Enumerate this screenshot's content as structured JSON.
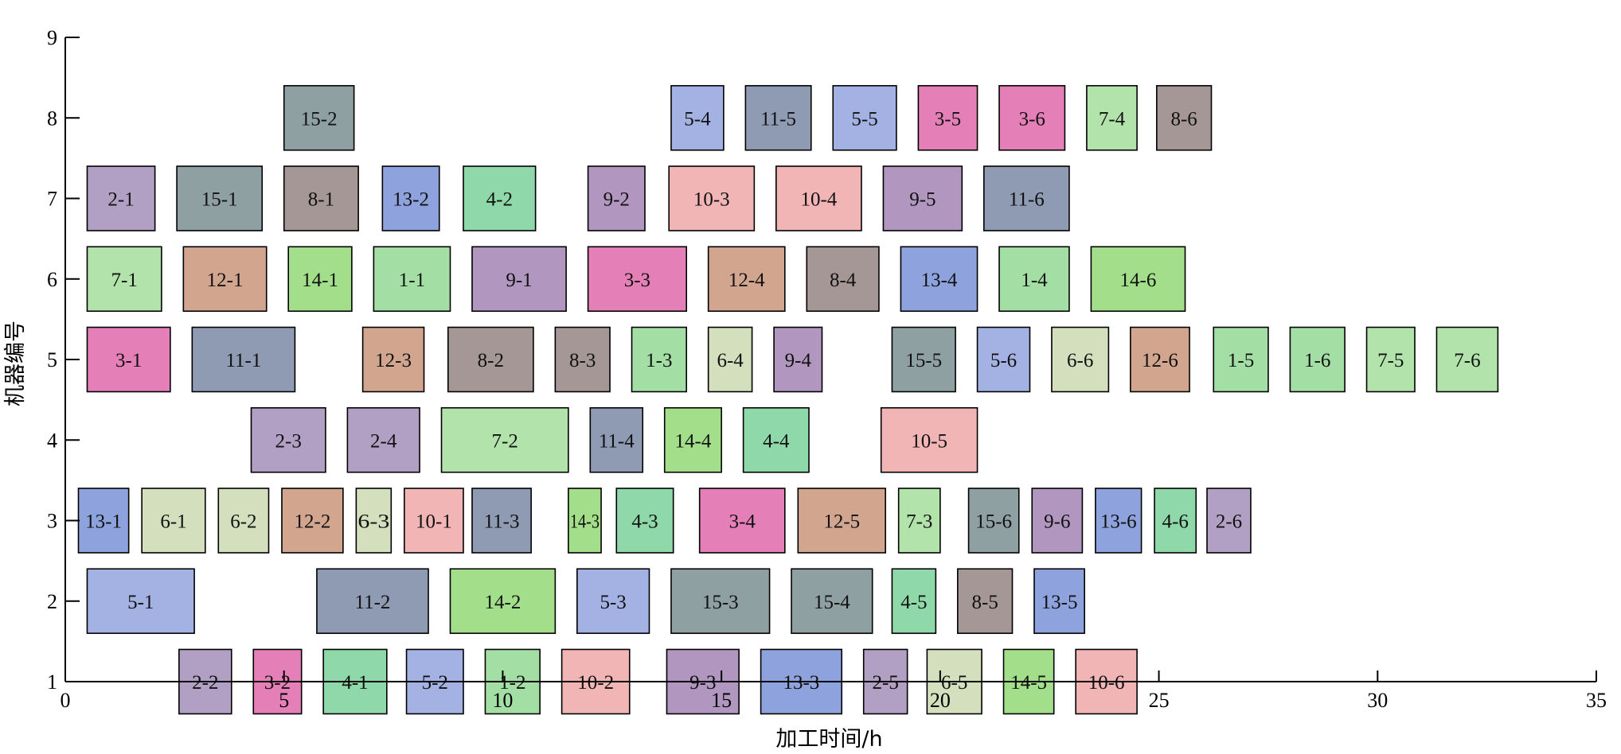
{
  "chart_data": {
    "type": "gantt",
    "xlabel": "加工时间/h",
    "ylabel": "机器编号",
    "xlim": [
      0,
      35
    ],
    "ylim": [
      1,
      9
    ],
    "xticks": [
      0,
      5,
      10,
      15,
      20,
      25,
      30,
      35
    ],
    "yticks": [
      1,
      2,
      3,
      4,
      5,
      6,
      7,
      8,
      9
    ],
    "grid": false,
    "legend": "none",
    "colors": {
      "1": "#a3dfa5",
      "2": "#b19fc4",
      "3": "#e57fb8",
      "4": "#8fd8a9",
      "5": "#a3b2e3",
      "6": "#d3dfbd",
      "7": "#b1e3ab",
      "8": "#a69797",
      "9": "#b196c0",
      "10": "#f2b5b5",
      "11": "#8e9bb3",
      "12": "#d2a58f",
      "13": "#8ea3dd",
      "14": "#a3df8a",
      "15": "#8fa0a3"
    },
    "tasks": [
      {
        "label": "2-2",
        "job": "2",
        "machine": 1,
        "start": 2.6,
        "end": 3.8
      },
      {
        "label": "3-2",
        "job": "3",
        "machine": 1,
        "start": 4.3,
        "end": 5.4
      },
      {
        "label": "4-1",
        "job": "4",
        "machine": 1,
        "start": 5.9,
        "end": 7.35
      },
      {
        "label": "5-2",
        "job": "5",
        "machine": 1,
        "start": 7.8,
        "end": 9.1
      },
      {
        "label": "1-2",
        "job": "1",
        "machine": 1,
        "start": 9.6,
        "end": 10.85
      },
      {
        "label": "10-2",
        "job": "10",
        "machine": 1,
        "start": 11.35,
        "end": 12.9
      },
      {
        "label": "9-3",
        "job": "9",
        "machine": 1,
        "start": 13.75,
        "end": 15.4
      },
      {
        "label": "13-3",
        "job": "13",
        "machine": 1,
        "start": 15.9,
        "end": 17.75
      },
      {
        "label": "2-5",
        "job": "2",
        "machine": 1,
        "start": 18.25,
        "end": 19.25
      },
      {
        "label": "6-5",
        "job": "6",
        "machine": 1,
        "start": 19.7,
        "end": 20.95
      },
      {
        "label": "14-5",
        "job": "14",
        "machine": 1,
        "start": 21.45,
        "end": 22.6
      },
      {
        "label": "10-6",
        "job": "10",
        "machine": 1,
        "start": 23.1,
        "end": 24.5
      },
      {
        "label": "5-1",
        "job": "5",
        "machine": 2,
        "start": 0.5,
        "end": 2.95
      },
      {
        "label": "11-2",
        "job": "11",
        "machine": 2,
        "start": 5.75,
        "end": 8.3
      },
      {
        "label": "14-2",
        "job": "14",
        "machine": 2,
        "start": 8.8,
        "end": 11.2
      },
      {
        "label": "5-3",
        "job": "5",
        "machine": 2,
        "start": 11.7,
        "end": 13.35
      },
      {
        "label": "15-3",
        "job": "15",
        "machine": 2,
        "start": 13.85,
        "end": 16.1
      },
      {
        "label": "15-4",
        "job": "15",
        "machine": 2,
        "start": 16.6,
        "end": 18.45
      },
      {
        "label": "4-5",
        "job": "4",
        "machine": 2,
        "start": 18.9,
        "end": 19.9
      },
      {
        "label": "8-5",
        "job": "8",
        "machine": 2,
        "start": 20.4,
        "end": 21.65
      },
      {
        "label": "13-5",
        "job": "13",
        "machine": 2,
        "start": 22.15,
        "end": 23.3
      },
      {
        "label": "13-1",
        "job": "13",
        "machine": 3,
        "start": 0.3,
        "end": 1.45
      },
      {
        "label": "6-1",
        "job": "6",
        "machine": 3,
        "start": 1.75,
        "end": 3.2
      },
      {
        "label": "6-2",
        "job": "6",
        "machine": 3,
        "start": 3.5,
        "end": 4.65
      },
      {
        "label": "12-2",
        "job": "12",
        "machine": 3,
        "start": 4.95,
        "end": 6.35
      },
      {
        "label": "6-3",
        "job": "6",
        "machine": 3,
        "start": 6.65,
        "end": 7.45
      },
      {
        "label": "10-1",
        "job": "10",
        "machine": 3,
        "start": 7.75,
        "end": 9.1
      },
      {
        "label": "11-3",
        "job": "11",
        "machine": 3,
        "start": 9.3,
        "end": 10.65
      },
      {
        "label": "14-3",
        "job": "14",
        "machine": 3,
        "start": 11.5,
        "end": 12.25
      },
      {
        "label": "4-3",
        "job": "4",
        "machine": 3,
        "start": 12.6,
        "end": 13.9
      },
      {
        "label": "3-4",
        "job": "3",
        "machine": 3,
        "start": 14.5,
        "end": 16.45
      },
      {
        "label": "12-5",
        "job": "12",
        "machine": 3,
        "start": 16.75,
        "end": 18.75
      },
      {
        "label": "7-3",
        "job": "7",
        "machine": 3,
        "start": 19.05,
        "end": 20.0
      },
      {
        "label": "15-6",
        "job": "15",
        "machine": 3,
        "start": 20.65,
        "end": 21.8
      },
      {
        "label": "9-6",
        "job": "9",
        "machine": 3,
        "start": 22.1,
        "end": 23.25
      },
      {
        "label": "13-6",
        "job": "13",
        "machine": 3,
        "start": 23.55,
        "end": 24.6
      },
      {
        "label": "4-6",
        "job": "4",
        "machine": 3,
        "start": 24.9,
        "end": 25.85
      },
      {
        "label": "2-6",
        "job": "2",
        "machine": 3,
        "start": 26.1,
        "end": 27.1
      },
      {
        "label": "2-3",
        "job": "2",
        "machine": 4,
        "start": 4.25,
        "end": 5.95
      },
      {
        "label": "2-4",
        "job": "2",
        "machine": 4,
        "start": 6.45,
        "end": 8.1
      },
      {
        "label": "7-2",
        "job": "7",
        "machine": 4,
        "start": 8.6,
        "end": 11.5
      },
      {
        "label": "11-4",
        "job": "11",
        "machine": 4,
        "start": 12.0,
        "end": 13.2
      },
      {
        "label": "14-4",
        "job": "14",
        "machine": 4,
        "start": 13.7,
        "end": 15.0
      },
      {
        "label": "4-4",
        "job": "4",
        "machine": 4,
        "start": 15.5,
        "end": 17.0
      },
      {
        "label": "10-5",
        "job": "10",
        "machine": 4,
        "start": 18.65,
        "end": 20.85
      },
      {
        "label": "3-1",
        "job": "3",
        "machine": 5,
        "start": 0.5,
        "end": 2.4
      },
      {
        "label": "11-1",
        "job": "11",
        "machine": 5,
        "start": 2.9,
        "end": 5.25
      },
      {
        "label": "12-3",
        "job": "12",
        "machine": 5,
        "start": 6.8,
        "end": 8.2
      },
      {
        "label": "8-2",
        "job": "8",
        "machine": 5,
        "start": 8.75,
        "end": 10.7
      },
      {
        "label": "8-3",
        "job": "8",
        "machine": 5,
        "start": 11.2,
        "end": 12.45
      },
      {
        "label": "1-3",
        "job": "1",
        "machine": 5,
        "start": 12.95,
        "end": 14.2
      },
      {
        "label": "6-4",
        "job": "6",
        "machine": 5,
        "start": 14.7,
        "end": 15.7
      },
      {
        "label": "9-4",
        "job": "9",
        "machine": 5,
        "start": 16.2,
        "end": 17.3
      },
      {
        "label": "15-5",
        "job": "15",
        "machine": 5,
        "start": 18.9,
        "end": 20.35
      },
      {
        "label": "5-6",
        "job": "5",
        "machine": 5,
        "start": 20.85,
        "end": 22.05
      },
      {
        "label": "6-6",
        "job": "6",
        "machine": 5,
        "start": 22.55,
        "end": 23.85
      },
      {
        "label": "12-6",
        "job": "12",
        "machine": 5,
        "start": 24.35,
        "end": 25.7
      },
      {
        "label": "1-5",
        "job": "1",
        "machine": 5,
        "start": 26.25,
        "end": 27.5
      },
      {
        "label": "1-6",
        "job": "1",
        "machine": 5,
        "start": 28.0,
        "end": 29.25
      },
      {
        "label": "7-5",
        "job": "7",
        "machine": 5,
        "start": 29.75,
        "end": 30.85
      },
      {
        "label": "7-6",
        "job": "7",
        "machine": 5,
        "start": 31.35,
        "end": 32.75
      },
      {
        "label": "7-1",
        "job": "7",
        "machine": 6,
        "start": 0.5,
        "end": 2.2
      },
      {
        "label": "12-1",
        "job": "12",
        "machine": 6,
        "start": 2.7,
        "end": 4.6
      },
      {
        "label": "14-1",
        "job": "14",
        "machine": 6,
        "start": 5.1,
        "end": 6.55
      },
      {
        "label": "1-1",
        "job": "1",
        "machine": 6,
        "start": 7.05,
        "end": 8.8
      },
      {
        "label": "9-1",
        "job": "9",
        "machine": 6,
        "start": 9.3,
        "end": 11.45
      },
      {
        "label": "3-3",
        "job": "3",
        "machine": 6,
        "start": 11.95,
        "end": 14.2
      },
      {
        "label": "12-4",
        "job": "12",
        "machine": 6,
        "start": 14.7,
        "end": 16.45
      },
      {
        "label": "8-4",
        "job": "8",
        "machine": 6,
        "start": 16.95,
        "end": 18.6
      },
      {
        "label": "13-4",
        "job": "13",
        "machine": 6,
        "start": 19.1,
        "end": 20.85
      },
      {
        "label": "1-4",
        "job": "1",
        "machine": 6,
        "start": 21.35,
        "end": 22.95
      },
      {
        "label": "14-6",
        "job": "14",
        "machine": 6,
        "start": 23.45,
        "end": 25.6
      },
      {
        "label": "2-1",
        "job": "2",
        "machine": 7,
        "start": 0.5,
        "end": 2.05
      },
      {
        "label": "15-1",
        "job": "15",
        "machine": 7,
        "start": 2.55,
        "end": 4.5
      },
      {
        "label": "8-1",
        "job": "8",
        "machine": 7,
        "start": 5.0,
        "end": 6.7
      },
      {
        "label": "13-2",
        "job": "13",
        "machine": 7,
        "start": 7.25,
        "end": 8.55
      },
      {
        "label": "4-2",
        "job": "4",
        "machine": 7,
        "start": 9.1,
        "end": 10.75
      },
      {
        "label": "9-2",
        "job": "9",
        "machine": 7,
        "start": 11.95,
        "end": 13.25
      },
      {
        "label": "10-3",
        "job": "10",
        "machine": 7,
        "start": 13.8,
        "end": 15.75
      },
      {
        "label": "10-4",
        "job": "10",
        "machine": 7,
        "start": 16.25,
        "end": 18.2
      },
      {
        "label": "9-5",
        "job": "9",
        "machine": 7,
        "start": 18.7,
        "end": 20.5
      },
      {
        "label": "11-6",
        "job": "11",
        "machine": 7,
        "start": 21.0,
        "end": 22.95
      },
      {
        "label": "15-2",
        "job": "15",
        "machine": 8,
        "start": 5.0,
        "end": 6.6
      },
      {
        "label": "5-4",
        "job": "5",
        "machine": 8,
        "start": 13.85,
        "end": 15.05
      },
      {
        "label": "11-5",
        "job": "11",
        "machine": 8,
        "start": 15.55,
        "end": 17.05
      },
      {
        "label": "5-5",
        "job": "5",
        "machine": 8,
        "start": 17.55,
        "end": 19.0
      },
      {
        "label": "3-5",
        "job": "3",
        "machine": 8,
        "start": 19.5,
        "end": 20.85
      },
      {
        "label": "3-6",
        "job": "3",
        "machine": 8,
        "start": 21.35,
        "end": 22.85
      },
      {
        "label": "7-4",
        "job": "7",
        "machine": 8,
        "start": 23.35,
        "end": 24.5
      },
      {
        "label": "8-6",
        "job": "8",
        "machine": 8,
        "start": 24.95,
        "end": 26.2
      }
    ]
  }
}
